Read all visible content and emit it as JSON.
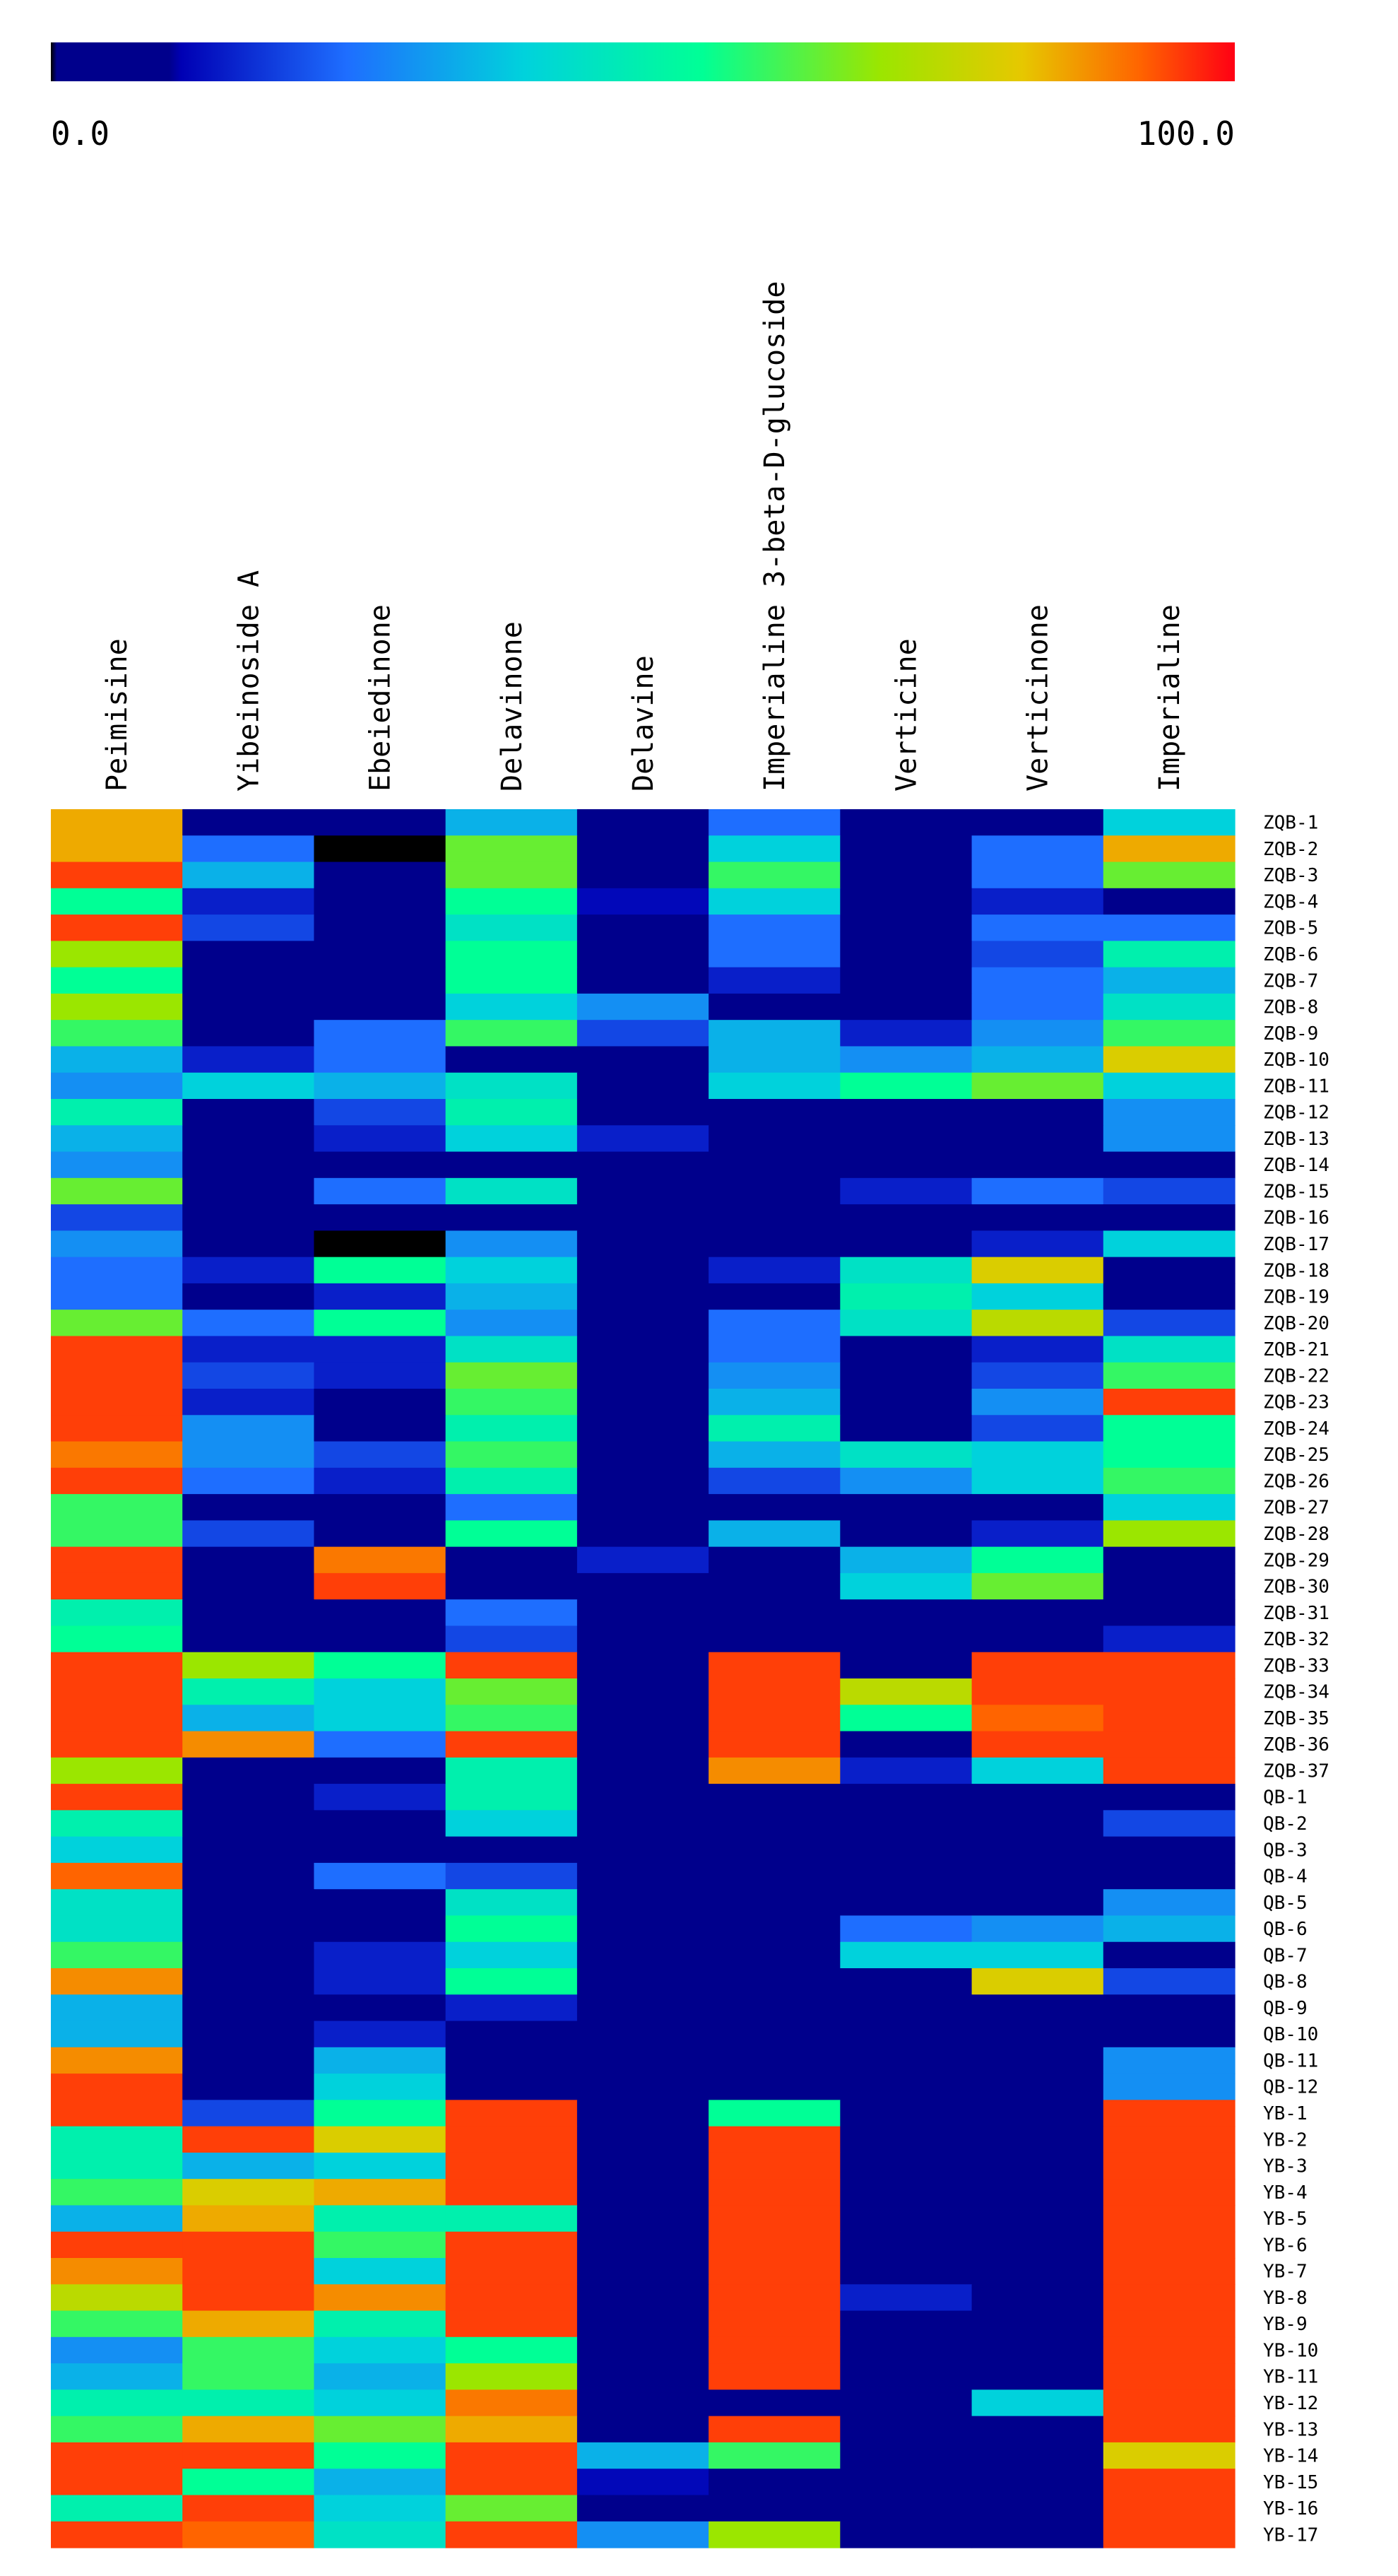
{
  "chart_data": {
    "type": "heatmap",
    "title": "",
    "colorbar": {
      "min_label": "0.0",
      "max_label": "100.0",
      "min": 0,
      "max": 100
    },
    "columns": [
      "Peimisine",
      "Yibeinoside A",
      "Ebeiedinone",
      "Delavinone",
      "Delavine",
      "Imperialine 3-beta-D-glucoside",
      "Verticine",
      "Verticinone",
      "Imperialine"
    ],
    "rows": [
      "ZQB-1",
      "ZQB-2",
      "ZQB-3",
      "ZQB-4",
      "ZQB-5",
      "ZQB-6",
      "ZQB-7",
      "ZQB-8",
      "ZQB-9",
      "ZQB-10",
      "ZQB-11",
      "ZQB-12",
      "ZQB-13",
      "ZQB-14",
      "ZQB-15",
      "ZQB-16",
      "ZQB-17",
      "ZQB-18",
      "ZQB-19",
      "ZQB-20",
      "ZQB-21",
      "ZQB-22",
      "ZQB-23",
      "ZQB-24",
      "ZQB-25",
      "ZQB-26",
      "ZQB-27",
      "ZQB-28",
      "ZQB-29",
      "ZQB-30",
      "ZQB-31",
      "ZQB-32",
      "ZQB-33",
      "ZQB-34",
      "ZQB-35",
      "ZQB-36",
      "ZQB-37",
      "QB-1",
      "QB-2",
      "QB-3",
      "QB-4",
      "QB-5",
      "QB-6",
      "QB-7",
      "QB-8",
      "QB-9",
      "QB-10",
      "QB-11",
      "QB-12",
      "YB-1",
      "YB-2",
      "YB-3",
      "YB-4",
      "YB-5",
      "YB-6",
      "YB-7",
      "YB-8",
      "YB-9",
      "YB-10",
      "YB-11",
      "YB-12",
      "YB-13",
      "YB-14",
      "YB-15",
      "YB-16",
      "YB-17"
    ],
    "values": [
      [
        85,
        5,
        5,
        35,
        3,
        25,
        5,
        5,
        40
      ],
      [
        85,
        25,
        0,
        65,
        3,
        40,
        3,
        25,
        85
      ],
      [
        95,
        35,
        8,
        65,
        3,
        60,
        3,
        25,
        65
      ],
      [
        55,
        15,
        3,
        55,
        12,
        40,
        3,
        15,
        3
      ],
      [
        95,
        20,
        3,
        45,
        3,
        25,
        5,
        25,
        25
      ],
      [
        70,
        8,
        5,
        55,
        8,
        25,
        3,
        20,
        50
      ],
      [
        55,
        8,
        5,
        55,
        3,
        15,
        8,
        25,
        35
      ],
      [
        70,
        5,
        3,
        40,
        30,
        8,
        8,
        25,
        45
      ],
      [
        60,
        8,
        25,
        60,
        20,
        35,
        15,
        30,
        60
      ],
      [
        35,
        15,
        25,
        5,
        3,
        35,
        30,
        35,
        80
      ],
      [
        30,
        40,
        35,
        45,
        8,
        40,
        55,
        65,
        40
      ],
      [
        50,
        5,
        20,
        50,
        3,
        5,
        3,
        5,
        30
      ],
      [
        35,
        5,
        15,
        40,
        15,
        5,
        3,
        5,
        30
      ],
      [
        30,
        8,
        5,
        8,
        3,
        5,
        5,
        8,
        10
      ],
      [
        65,
        5,
        25,
        45,
        3,
        5,
        15,
        25,
        20
      ],
      [
        20,
        5,
        5,
        5,
        3,
        5,
        3,
        3,
        8
      ],
      [
        30,
        5,
        0,
        30,
        3,
        5,
        3,
        15,
        40
      ],
      [
        25,
        15,
        55,
        40,
        5,
        15,
        45,
        80,
        8
      ],
      [
        25,
        5,
        15,
        35,
        5,
        8,
        50,
        40,
        10
      ],
      [
        65,
        25,
        55,
        30,
        8,
        25,
        45,
        75,
        20
      ],
      [
        95,
        15,
        15,
        45,
        3,
        25,
        3,
        15,
        45
      ],
      [
        95,
        20,
        15,
        65,
        3,
        30,
        3,
        20,
        60
      ],
      [
        95,
        15,
        8,
        60,
        3,
        35,
        3,
        30,
        95
      ],
      [
        95,
        30,
        5,
        50,
        3,
        50,
        3,
        20,
        55
      ],
      [
        90,
        30,
        20,
        60,
        3,
        35,
        45,
        40,
        55
      ],
      [
        95,
        25,
        15,
        50,
        5,
        20,
        30,
        40,
        60
      ],
      [
        60,
        5,
        8,
        25,
        5,
        8,
        3,
        8,
        40
      ],
      [
        60,
        20,
        8,
        55,
        3,
        35,
        3,
        15,
        70
      ],
      [
        95,
        5,
        90,
        5,
        15,
        5,
        35,
        55,
        5
      ],
      [
        95,
        5,
        95,
        5,
        3,
        5,
        40,
        65,
        8
      ],
      [
        50,
        5,
        5,
        25,
        3,
        8,
        8,
        8,
        8
      ],
      [
        55,
        5,
        5,
        20,
        3,
        8,
        8,
        8,
        15
      ],
      [
        95,
        70,
        55,
        95,
        5,
        95,
        5,
        95,
        95
      ],
      [
        95,
        50,
        40,
        65,
        5,
        95,
        75,
        95,
        95
      ],
      [
        95,
        35,
        40,
        60,
        5,
        95,
        55,
        92,
        95
      ],
      [
        95,
        88,
        25,
        95,
        3,
        95,
        5,
        95,
        95
      ],
      [
        70,
        5,
        5,
        50,
        3,
        88,
        15,
        40,
        95
      ],
      [
        95,
        5,
        15,
        50,
        3,
        3,
        5,
        8,
        5
      ],
      [
        50,
        5,
        5,
        40,
        8,
        3,
        5,
        8,
        20
      ],
      [
        40,
        5,
        8,
        3,
        3,
        3,
        5,
        5,
        5
      ],
      [
        92,
        5,
        25,
        20,
        3,
        3,
        5,
        5,
        5
      ],
      [
        45,
        8,
        8,
        45,
        3,
        3,
        8,
        8,
        30
      ],
      [
        45,
        8,
        8,
        55,
        3,
        8,
        25,
        30,
        35
      ],
      [
        60,
        8,
        15,
        40,
        3,
        3,
        40,
        40,
        8
      ],
      [
        88,
        8,
        15,
        55,
        3,
        3,
        5,
        80,
        20
      ],
      [
        35,
        5,
        5,
        15,
        3,
        3,
        5,
        3,
        3
      ],
      [
        35,
        5,
        15,
        5,
        3,
        3,
        5,
        3,
        3
      ],
      [
        88,
        5,
        35,
        5,
        3,
        5,
        5,
        8,
        30
      ],
      [
        95,
        5,
        40,
        5,
        3,
        5,
        5,
        5,
        30
      ],
      [
        95,
        20,
        55,
        95,
        3,
        55,
        5,
        5,
        95
      ],
      [
        50,
        95,
        80,
        95,
        8,
        95,
        5,
        5,
        95
      ],
      [
        50,
        35,
        40,
        95,
        8,
        95,
        5,
        5,
        95
      ],
      [
        60,
        80,
        85,
        95,
        8,
        95,
        5,
        5,
        95
      ],
      [
        35,
        85,
        50,
        50,
        8,
        95,
        5,
        5,
        95
      ],
      [
        95,
        95,
        60,
        95,
        8,
        95,
        5,
        5,
        95
      ],
      [
        88,
        95,
        40,
        95,
        8,
        95,
        5,
        5,
        95
      ],
      [
        75,
        95,
        88,
        95,
        8,
        95,
        15,
        8,
        95
      ],
      [
        60,
        85,
        50,
        95,
        8,
        95,
        5,
        5,
        95
      ],
      [
        30,
        60,
        40,
        55,
        3,
        95,
        5,
        5,
        95
      ],
      [
        35,
        60,
        35,
        70,
        8,
        95,
        5,
        5,
        95
      ],
      [
        50,
        50,
        40,
        90,
        5,
        5,
        5,
        40,
        95
      ],
      [
        60,
        85,
        65,
        85,
        3,
        95,
        5,
        5,
        95
      ],
      [
        95,
        95,
        55,
        95,
        35,
        60,
        5,
        5,
        80
      ],
      [
        95,
        55,
        35,
        95,
        12,
        3,
        5,
        5,
        95
      ],
      [
        50,
        95,
        40,
        65,
        3,
        3,
        5,
        5,
        95
      ],
      [
        95,
        92,
        45,
        95,
        30,
        70,
        5,
        5,
        95
      ]
    ]
  }
}
